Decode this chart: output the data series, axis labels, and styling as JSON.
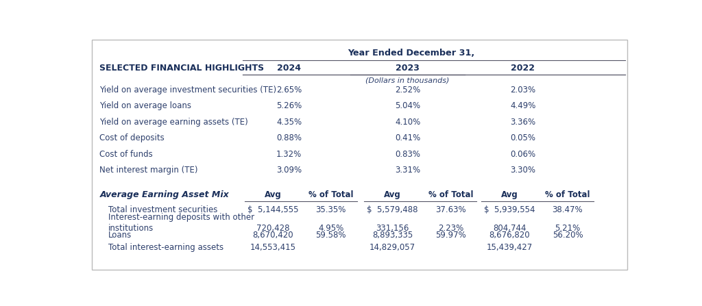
{
  "title": "Year Ended December 31,",
  "background_color": "#ffffff",
  "text_color": "#2c3e6b",
  "header_color": "#1a2f5a",
  "section1_header": "SELECTED FINANCIAL HIGHLIGHTS",
  "years": [
    "2024",
    "2023",
    "2022"
  ],
  "dollars_note": "(Dollars in thousands)",
  "highlights_rows": [
    {
      "label": "Yield on average investment securities (TE)",
      "vals": [
        "2.65%",
        "2.52%",
        "2.03%"
      ]
    },
    {
      "label": "Yield on average loans",
      "vals": [
        "5.26%",
        "5.04%",
        "4.49%"
      ]
    },
    {
      "label": "Yield on average earning assets (TE)",
      "vals": [
        "4.35%",
        "4.10%",
        "3.36%"
      ]
    },
    {
      "label": "Cost of deposits",
      "vals": [
        "0.88%",
        "0.41%",
        "0.05%"
      ]
    },
    {
      "label": "Cost of funds",
      "vals": [
        "1.32%",
        "0.83%",
        "0.06%"
      ]
    },
    {
      "label": "Net interest margin (TE)",
      "vals": [
        "3.09%",
        "3.31%",
        "3.30%"
      ]
    }
  ],
  "section2_header": "Average Earning Asset Mix",
  "mix_rows": [
    {
      "label1": "Total investment securities",
      "label2": "",
      "vals": [
        "$  5,144,555",
        "35.35%",
        "$  5,579,488",
        "37.63%",
        "$  5,939,554",
        "38.47%"
      ]
    },
    {
      "label1": "Interest-earning deposits with other",
      "label2": "institutions",
      "vals": [
        "720,428",
        "4.95%",
        "331,156",
        "2.23%",
        "804,744",
        "5.21%"
      ]
    },
    {
      "label1": "Loans",
      "label2": "",
      "vals": [
        "8,670,420",
        "59.58%",
        "8,893,335",
        "59.97%",
        "8,676,820",
        "56.20%"
      ]
    },
    {
      "label1": "Total interest-earning assets",
      "label2": "",
      "vals": [
        "14,553,415",
        "",
        "14,829,057",
        "",
        "15,439,427",
        ""
      ]
    }
  ],
  "line_color": "#555566",
  "fs_body": 8.5,
  "fs_header": 9.0,
  "fs_title": 9.2,
  "s1_cols": [
    0.37,
    0.588,
    0.8
  ],
  "s2_cols": [
    0.34,
    0.447,
    0.56,
    0.667,
    0.775,
    0.882
  ]
}
